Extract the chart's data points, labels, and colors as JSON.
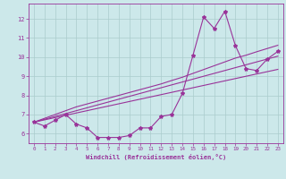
{
  "x": [
    0,
    1,
    2,
    3,
    4,
    5,
    6,
    7,
    8,
    9,
    10,
    11,
    12,
    13,
    14,
    15,
    16,
    17,
    18,
    19,
    20,
    21,
    22,
    23
  ],
  "main_line": [
    6.6,
    6.4,
    6.7,
    7.0,
    6.5,
    6.3,
    5.8,
    5.8,
    5.8,
    5.9,
    6.3,
    6.3,
    6.9,
    7.0,
    8.1,
    10.1,
    12.1,
    11.5,
    12.4,
    10.6,
    9.4,
    9.3,
    9.9,
    10.3
  ],
  "reg_line1": [
    6.6,
    6.72,
    6.84,
    6.96,
    7.08,
    7.2,
    7.32,
    7.44,
    7.56,
    7.68,
    7.8,
    7.92,
    8.04,
    8.16,
    8.28,
    8.4,
    8.52,
    8.64,
    8.76,
    8.88,
    9.0,
    9.12,
    9.24,
    9.36
  ],
  "reg_line2": [
    6.6,
    6.75,
    6.9,
    7.05,
    7.2,
    7.35,
    7.5,
    7.65,
    7.8,
    7.95,
    8.1,
    8.25,
    8.4,
    8.55,
    8.7,
    8.85,
    9.0,
    9.15,
    9.3,
    9.45,
    9.6,
    9.75,
    9.9,
    10.05
  ],
  "reg_line3": [
    6.6,
    6.8,
    7.0,
    7.2,
    7.4,
    7.55,
    7.7,
    7.85,
    8.0,
    8.15,
    8.3,
    8.45,
    8.6,
    8.78,
    8.95,
    9.15,
    9.35,
    9.55,
    9.75,
    9.95,
    10.1,
    10.28,
    10.45,
    10.62
  ],
  "line_color": "#993399",
  "bg_color": "#cce8ea",
  "grid_color": "#aacccc",
  "xlabel": "Windchill (Refroidissement éolien,°C)",
  "ylim": [
    5.5,
    12.8
  ],
  "xlim": [
    -0.5,
    23.5
  ],
  "yticks": [
    6,
    7,
    8,
    9,
    10,
    11,
    12
  ],
  "xticks": [
    0,
    1,
    2,
    3,
    4,
    5,
    6,
    7,
    8,
    9,
    10,
    11,
    12,
    13,
    14,
    15,
    16,
    17,
    18,
    19,
    20,
    21,
    22,
    23
  ],
  "marker": "*",
  "markersize": 3,
  "linewidth": 0.8
}
